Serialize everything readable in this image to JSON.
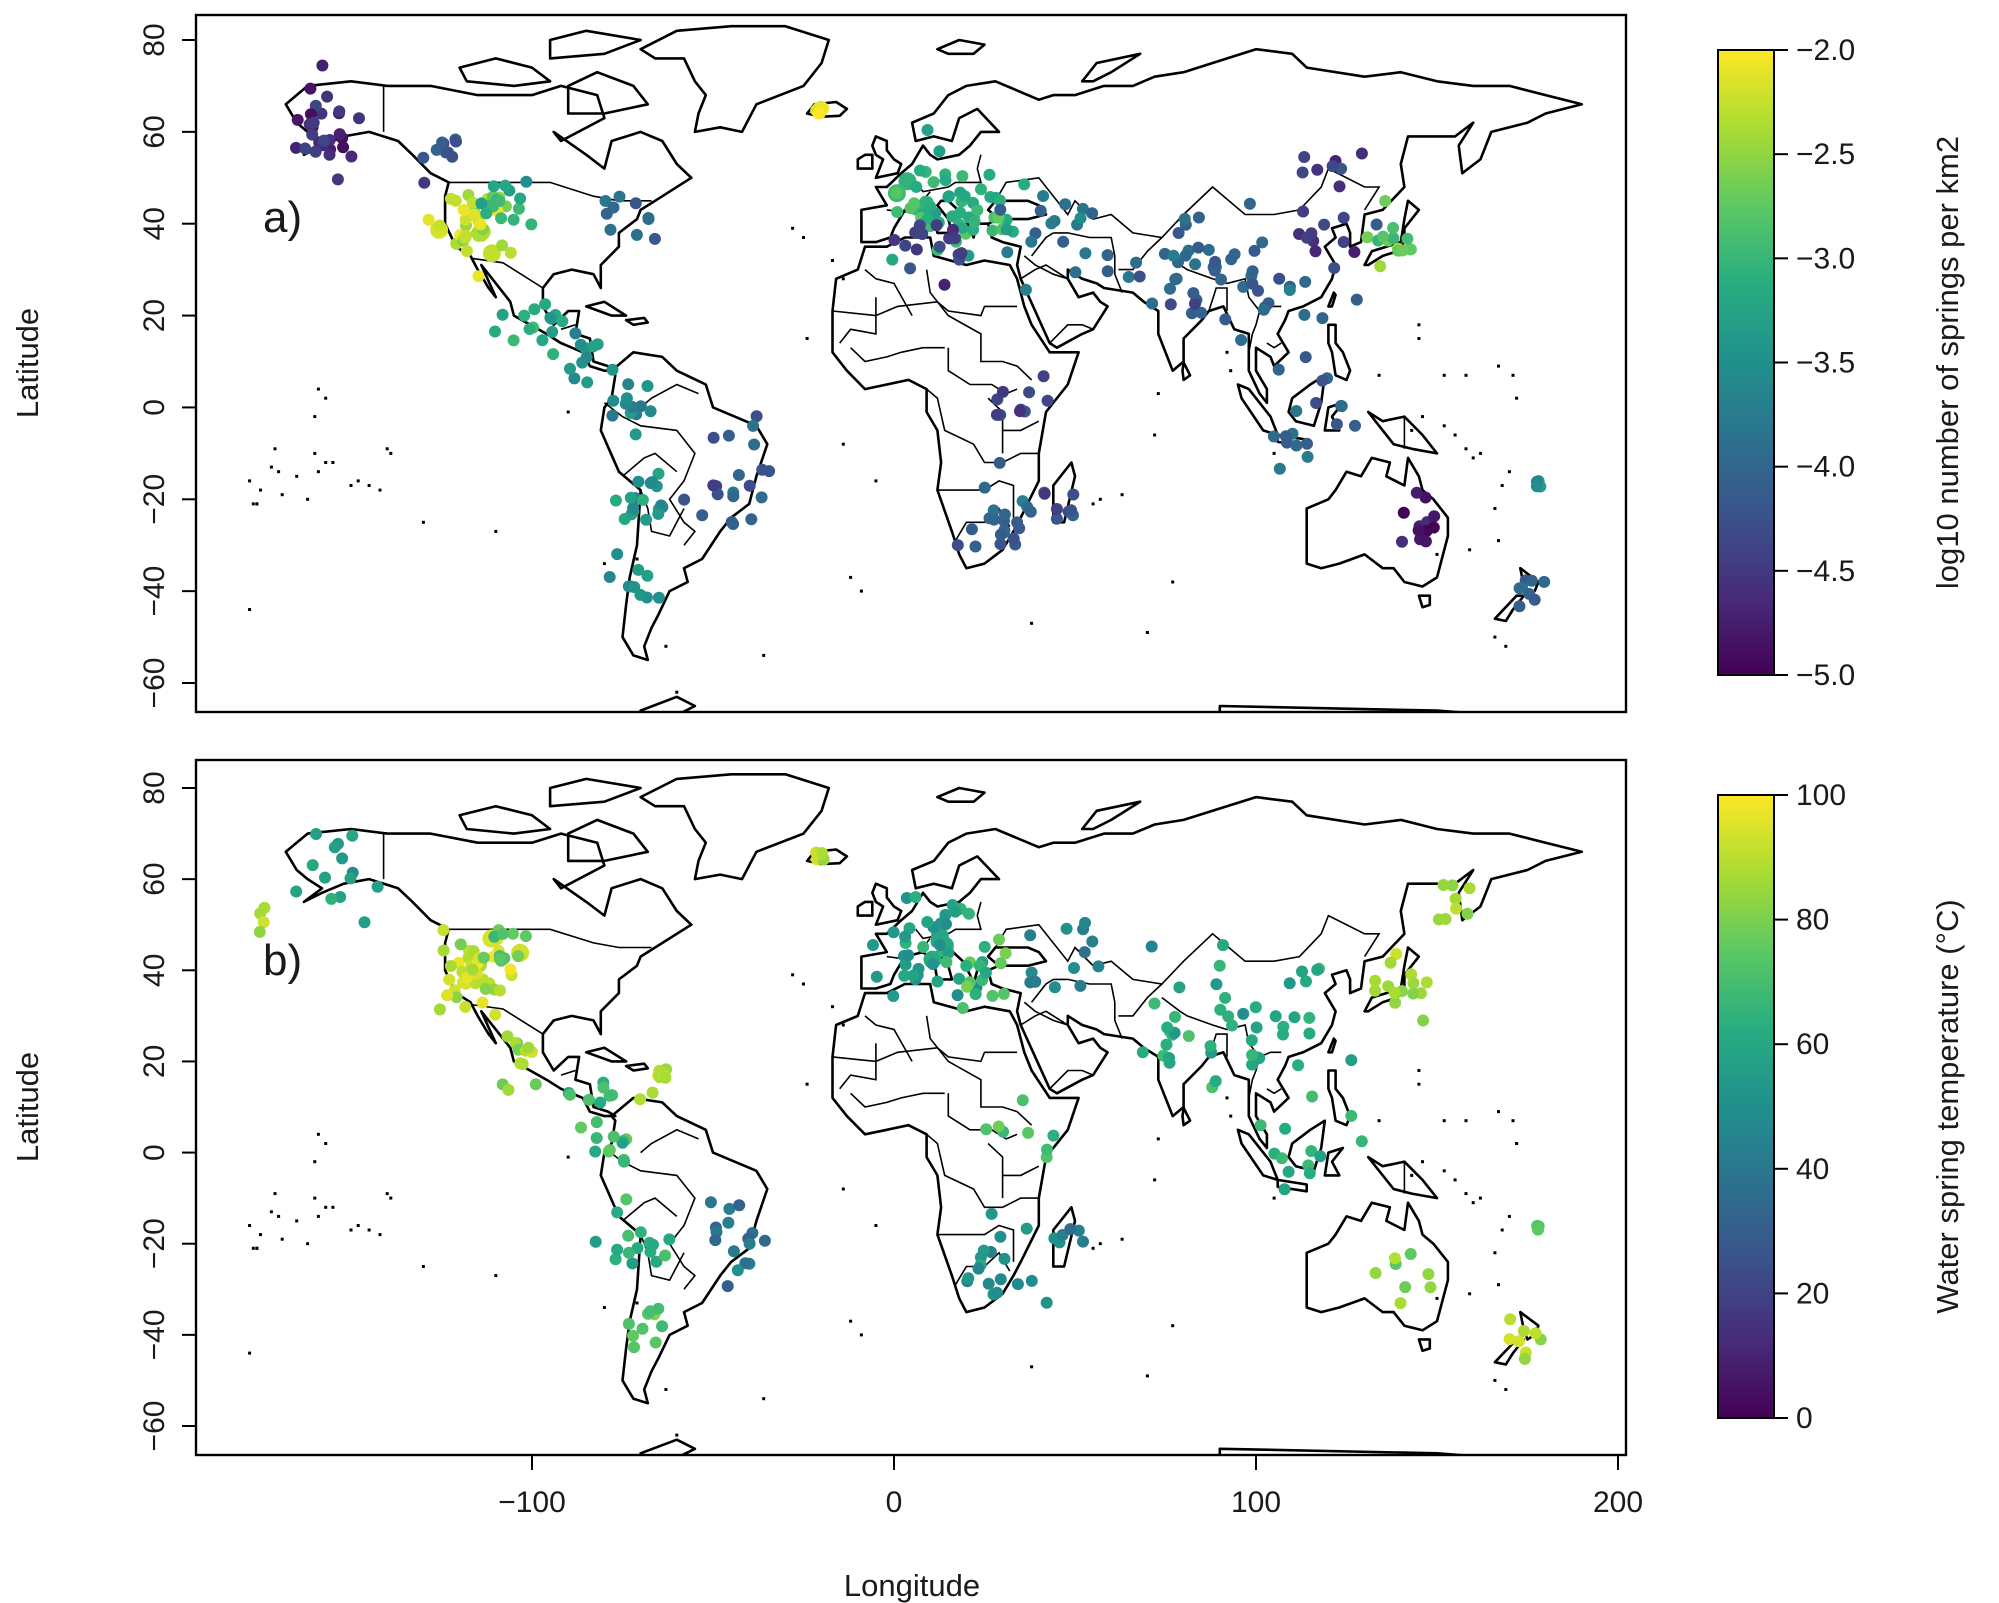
{
  "figure": {
    "xlabel": "Longitude",
    "ylabel": "Latitude",
    "panels": [
      {
        "label": "a)",
        "colorbar_title": "log10 number of springs per km2",
        "colorbar_ticks": [
          "−2.0",
          "−2.5",
          "−3.0",
          "−3.5",
          "−4.0",
          "−4.5",
          "−5.0"
        ],
        "cmin": -5.0,
        "cmax": -2.0
      },
      {
        "label": "b)",
        "colorbar_title": "Water spring temperature (°C)",
        "colorbar_ticks": [
          "100",
          "80",
          "60",
          "40",
          "20",
          "0"
        ],
        "cmin": 0,
        "cmax": 100
      }
    ],
    "xticks": [
      "−100",
      "0",
      "100",
      "200"
    ],
    "yticks": [
      "80",
      "60",
      "40",
      "20",
      "0",
      "−20",
      "−40",
      "−60"
    ],
    "colormap": "viridis",
    "colormap_stops": [
      "#440154",
      "#472c7a",
      "#3b518b",
      "#2c718e",
      "#21908d",
      "#27ad81",
      "#5cc863",
      "#aadc32",
      "#fde725"
    ]
  },
  "chart_data": [
    {
      "type": "scatter",
      "title": "",
      "panel_label": "a)",
      "xlabel": "Longitude",
      "ylabel": "Latitude",
      "xlim": [
        -190,
        200
      ],
      "ylim": [
        -65,
        85
      ],
      "color_variable": "log10 number of springs per km2",
      "color_range": [
        -5.0,
        -2.0
      ],
      "clusters": [
        {
          "x": -115,
          "y": 40,
          "spread": 5,
          "n": 40,
          "value": -2.3
        },
        {
          "x": -110,
          "y": 45,
          "spread": 4,
          "n": 16,
          "value": -3.0
        },
        {
          "x": -160,
          "y": 62,
          "spread": 6,
          "n": 18,
          "value": -4.6
        },
        {
          "x": -155,
          "y": 57,
          "spread": 3,
          "n": 10,
          "value": -4.7
        },
        {
          "x": -125,
          "y": 55,
          "spread": 4,
          "n": 10,
          "value": -4.2
        },
        {
          "x": -75,
          "y": 40,
          "spread": 4,
          "n": 10,
          "value": -3.9
        },
        {
          "x": -100,
          "y": 20,
          "spread": 4,
          "n": 14,
          "value": -3.2
        },
        {
          "x": -85,
          "y": 12,
          "spread": 4,
          "n": 12,
          "value": -3.4
        },
        {
          "x": -72,
          "y": 0,
          "spread": 4,
          "n": 12,
          "value": -3.6
        },
        {
          "x": -70,
          "y": -20,
          "spread": 4,
          "n": 18,
          "value": -3.4
        },
        {
          "x": -45,
          "y": -15,
          "spread": 8,
          "n": 20,
          "value": -4.2
        },
        {
          "x": -70,
          "y": -38,
          "spread": 4,
          "n": 10,
          "value": -3.4
        },
        {
          "x": -20,
          "y": 65,
          "spread": 1,
          "n": 8,
          "value": -2.0
        },
        {
          "x": 10,
          "y": 46,
          "spread": 6,
          "n": 40,
          "value": -3.0
        },
        {
          "x": 25,
          "y": 40,
          "spread": 5,
          "n": 20,
          "value": -3.1
        },
        {
          "x": 10,
          "y": 36,
          "spread": 6,
          "n": 16,
          "value": -4.5
        },
        {
          "x": 45,
          "y": 40,
          "spread": 8,
          "n": 18,
          "value": -3.9
        },
        {
          "x": 30,
          "y": -25,
          "spread": 6,
          "n": 24,
          "value": -4.1
        },
        {
          "x": 35,
          "y": 0,
          "spread": 5,
          "n": 10,
          "value": -4.3
        },
        {
          "x": 47,
          "y": -20,
          "spread": 3,
          "n": 6,
          "value": -4.2
        },
        {
          "x": 78,
          "y": 30,
          "spread": 8,
          "n": 26,
          "value": -4.0
        },
        {
          "x": 105,
          "y": 28,
          "spread": 10,
          "n": 30,
          "value": -4.1
        },
        {
          "x": 138,
          "y": 36,
          "spread": 4,
          "n": 14,
          "value": -2.7
        },
        {
          "x": 120,
          "y": 45,
          "spread": 10,
          "n": 20,
          "value": -4.5
        },
        {
          "x": 115,
          "y": -2,
          "spread": 8,
          "n": 16,
          "value": -4.0
        },
        {
          "x": 145,
          "y": -25,
          "spread": 5,
          "n": 12,
          "value": -4.8
        },
        {
          "x": 178,
          "y": -17,
          "spread": 1,
          "n": 4,
          "value": -3.5
        },
        {
          "x": 175,
          "y": -40,
          "spread": 3,
          "n": 8,
          "value": -4.0
        }
      ]
    },
    {
      "type": "scatter",
      "title": "",
      "panel_label": "b)",
      "xlabel": "Longitude",
      "ylabel": "Latitude",
      "xlim": [
        -190,
        200
      ],
      "ylim": [
        -65,
        85
      ],
      "color_variable": "Water spring temperature (°C)",
      "color_range": [
        0,
        100
      ],
      "clusters": [
        {
          "x": -115,
          "y": 40,
          "spread": 5,
          "n": 40,
          "value": 92
        },
        {
          "x": -110,
          "y": 45,
          "spread": 4,
          "n": 12,
          "value": 75
        },
        {
          "x": -155,
          "y": 62,
          "spread": 6,
          "n": 14,
          "value": 55
        },
        {
          "x": -175,
          "y": 52,
          "spread": 2,
          "n": 4,
          "value": 90
        },
        {
          "x": -100,
          "y": 20,
          "spread": 4,
          "n": 12,
          "value": 85
        },
        {
          "x": -85,
          "y": 12,
          "spread": 4,
          "n": 10,
          "value": 70
        },
        {
          "x": -65,
          "y": 16,
          "spread": 3,
          "n": 8,
          "value": 90
        },
        {
          "x": -75,
          "y": 0,
          "spread": 4,
          "n": 10,
          "value": 70
        },
        {
          "x": -70,
          "y": -20,
          "spread": 4,
          "n": 16,
          "value": 65
        },
        {
          "x": -45,
          "y": -20,
          "spread": 6,
          "n": 16,
          "value": 38
        },
        {
          "x": -70,
          "y": -38,
          "spread": 4,
          "n": 10,
          "value": 72
        },
        {
          "x": -20,
          "y": 65,
          "spread": 1,
          "n": 8,
          "value": 90
        },
        {
          "x": 10,
          "y": 44,
          "spread": 8,
          "n": 40,
          "value": 55
        },
        {
          "x": 25,
          "y": 38,
          "spread": 5,
          "n": 16,
          "value": 70
        },
        {
          "x": 45,
          "y": 40,
          "spread": 8,
          "n": 14,
          "value": 45
        },
        {
          "x": 30,
          "y": -25,
          "spread": 6,
          "n": 18,
          "value": 50
        },
        {
          "x": 38,
          "y": 5,
          "spread": 5,
          "n": 8,
          "value": 70
        },
        {
          "x": 47,
          "y": -20,
          "spread": 3,
          "n": 6,
          "value": 45
        },
        {
          "x": 80,
          "y": 25,
          "spread": 8,
          "n": 20,
          "value": 65
        },
        {
          "x": 105,
          "y": 28,
          "spread": 10,
          "n": 24,
          "value": 60
        },
        {
          "x": 140,
          "y": 38,
          "spread": 4,
          "n": 14,
          "value": 85
        },
        {
          "x": 155,
          "y": 55,
          "spread": 4,
          "n": 8,
          "value": 85
        },
        {
          "x": 115,
          "y": 0,
          "spread": 8,
          "n": 14,
          "value": 65
        },
        {
          "x": 140,
          "y": -28,
          "spread": 5,
          "n": 8,
          "value": 80
        },
        {
          "x": 178,
          "y": -17,
          "spread": 1,
          "n": 4,
          "value": 70
        },
        {
          "x": 175,
          "y": -40,
          "spread": 3,
          "n": 8,
          "value": 88
        }
      ]
    }
  ]
}
